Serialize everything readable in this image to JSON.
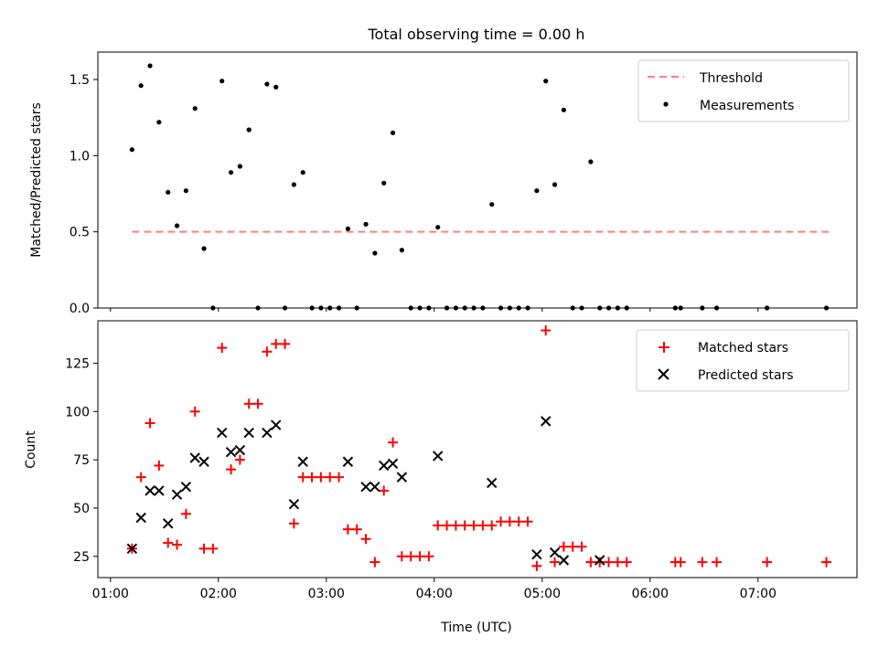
{
  "chart_data": [
    {
      "type": "scatter",
      "title": "Total observing time = 0.00 h",
      "xlabel": "",
      "ylabel": "Matched/Predicted stars",
      "xlim": [
        "00:53",
        "07:55"
      ],
      "ylim": [
        0,
        1.68
      ],
      "yticks": [
        "0.0",
        "0.5",
        "1.0",
        "1.5"
      ],
      "threshold": {
        "name": "Threshold",
        "color": "#ff7f7f",
        "x": [
          "01:12",
          "07:40"
        ],
        "y": 0.5
      },
      "series": [
        {
          "name": "Measurements",
          "marker": "dot",
          "color": "#000000",
          "x": [
            "01:12",
            "01:17",
            "01:22",
            "01:27",
            "01:32",
            "01:37",
            "01:42",
            "01:47",
            "01:52",
            "01:57",
            "02:02",
            "02:07",
            "02:12",
            "02:17",
            "02:22",
            "02:27",
            "02:32",
            "02:37",
            "02:42",
            "02:47",
            "02:52",
            "02:57",
            "03:02",
            "03:07",
            "03:12",
            "03:17",
            "03:22",
            "03:27",
            "03:32",
            "03:37",
            "03:42",
            "03:47",
            "03:52",
            "03:57",
            "04:02",
            "04:07",
            "04:12",
            "04:17",
            "04:22",
            "04:27",
            "04:32",
            "04:37",
            "04:42",
            "04:47",
            "04:52",
            "04:57",
            "05:02",
            "05:07",
            "05:12",
            "05:17",
            "05:22",
            "05:27",
            "05:32",
            "05:37",
            "05:42",
            "05:47",
            "06:14",
            "06:17",
            "06:29",
            "06:37",
            "07:05",
            "07:38"
          ],
          "y": [
            1.04,
            1.46,
            1.59,
            1.22,
            0.76,
            0.54,
            0.77,
            1.31,
            0.39,
            0.0,
            1.49,
            0.89,
            0.93,
            1.17,
            0.0,
            1.47,
            1.45,
            0.0,
            0.81,
            0.89,
            0.0,
            0.0,
            0.0,
            0.0,
            0.52,
            0.0,
            0.55,
            0.36,
            0.82,
            1.15,
            0.38,
            0.0,
            0.0,
            0.0,
            0.53,
            0.0,
            0.0,
            0.0,
            0.0,
            0.0,
            0.68,
            0.0,
            0.0,
            0.0,
            0.0,
            0.77,
            1.49,
            0.81,
            1.3,
            0.0,
            0.0,
            0.96,
            0.0,
            0.0,
            0.0,
            0.0,
            0.0,
            0.0,
            0.0,
            0.0,
            0.0,
            0.0
          ]
        }
      ]
    },
    {
      "type": "scatter",
      "title": "",
      "xlabel": "Time (UTC)",
      "ylabel": "Count",
      "xlim": [
        "00:53",
        "07:55"
      ],
      "ylim": [
        14,
        147
      ],
      "yticks": [
        "25",
        "50",
        "75",
        "100",
        "125"
      ],
      "xticks": [
        "01:00",
        "02:00",
        "03:00",
        "04:00",
        "05:00",
        "06:00",
        "07:00"
      ],
      "series": [
        {
          "name": "Matched stars",
          "marker": "plus",
          "color": "#ff0000",
          "x": [
            "01:12",
            "01:17",
            "01:22",
            "01:27",
            "01:32",
            "01:37",
            "01:42",
            "01:47",
            "01:52",
            "01:57",
            "02:02",
            "02:07",
            "02:12",
            "02:17",
            "02:22",
            "02:27",
            "02:32",
            "02:37",
            "02:42",
            "02:47",
            "02:52",
            "02:57",
            "03:02",
            "03:07",
            "03:12",
            "03:17",
            "03:22",
            "03:27",
            "03:32",
            "03:37",
            "03:42",
            "03:47",
            "03:52",
            "03:57",
            "04:02",
            "04:07",
            "04:12",
            "04:17",
            "04:22",
            "04:27",
            "04:32",
            "04:37",
            "04:42",
            "04:47",
            "04:52",
            "04:57",
            "05:02",
            "05:07",
            "05:12",
            "05:17",
            "05:22",
            "05:27",
            "05:32",
            "05:37",
            "05:42",
            "05:47",
            "06:14",
            "06:17",
            "06:29",
            "06:37",
            "07:05",
            "07:38"
          ],
          "y": [
            29,
            66,
            94,
            72,
            32,
            31,
            47,
            100,
            29,
            29,
            133,
            70,
            75,
            104,
            104,
            131,
            135,
            135,
            42,
            66,
            66,
            66,
            66,
            66,
            39,
            39,
            34,
            22,
            59,
            84,
            25,
            25,
            25,
            25,
            41,
            41,
            41,
            41,
            41,
            41,
            41,
            43,
            43,
            43,
            43,
            20,
            142,
            22,
            30,
            30,
            30,
            22,
            22,
            22,
            22,
            22,
            22,
            22,
            22,
            22,
            22,
            22
          ]
        },
        {
          "name": "Predicted stars",
          "marker": "x",
          "color": "#000000",
          "x": [
            "01:12",
            "01:17",
            "01:22",
            "01:27",
            "01:32",
            "01:37",
            "01:42",
            "01:47",
            "01:52",
            "02:02",
            "02:07",
            "02:12",
            "02:17",
            "02:27",
            "02:32",
            "02:42",
            "02:47",
            "03:12",
            "03:22",
            "03:27",
            "03:32",
            "03:37",
            "03:42",
            "04:02",
            "04:32",
            "04:57",
            "05:02",
            "05:07",
            "05:12",
            "05:32"
          ],
          "y": [
            29,
            45,
            59,
            59,
            42,
            57,
            61,
            76,
            74,
            89,
            79,
            80,
            89,
            89,
            93,
            52,
            74,
            74,
            61,
            61,
            72,
            73,
            66,
            77,
            63,
            26,
            95,
            27,
            23,
            23
          ]
        }
      ]
    }
  ]
}
